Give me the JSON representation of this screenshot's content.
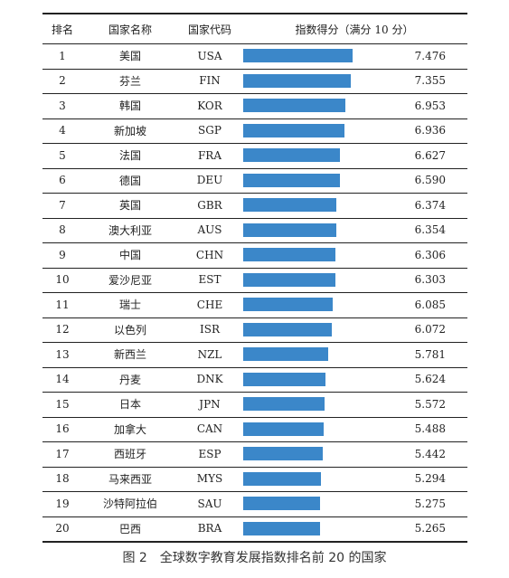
{
  "caption": "图 2　全球数字教育发展指数排名前 20 的国家",
  "headers": {
    "rank": "排名",
    "name": "国家名称",
    "code": "国家代码",
    "score": "指数得分（满分 10 分）"
  },
  "chart_data": {
    "type": "bar",
    "orientation": "horizontal",
    "title": "",
    "xlim": [
      0,
      10
    ],
    "bar_color": "#3b87c9",
    "rows": [
      {
        "rank": "1",
        "name": "美国",
        "code": "USA",
        "value": 7.476,
        "label": "7.476"
      },
      {
        "rank": "2",
        "name": "芬兰",
        "code": "FIN",
        "value": 7.355,
        "label": "7.355"
      },
      {
        "rank": "3",
        "name": "韩国",
        "code": "KOR",
        "value": 6.953,
        "label": "6.953"
      },
      {
        "rank": "4",
        "name": "新加坡",
        "code": "SGP",
        "value": 6.936,
        "label": "6.936"
      },
      {
        "rank": "5",
        "name": "法国",
        "code": "FRA",
        "value": 6.627,
        "label": "6.627"
      },
      {
        "rank": "6",
        "name": "德国",
        "code": "DEU",
        "value": 6.59,
        "label": "6.590"
      },
      {
        "rank": "7",
        "name": "英国",
        "code": "GBR",
        "value": 6.374,
        "label": "6.374"
      },
      {
        "rank": "8",
        "name": "澳大利亚",
        "code": "AUS",
        "value": 6.354,
        "label": "6.354"
      },
      {
        "rank": "9",
        "name": "中国",
        "code": "CHN",
        "value": 6.306,
        "label": "6.306"
      },
      {
        "rank": "10",
        "name": "爱沙尼亚",
        "code": "EST",
        "value": 6.303,
        "label": "6.303"
      },
      {
        "rank": "11",
        "name": "瑞士",
        "code": "CHE",
        "value": 6.085,
        "label": "6.085"
      },
      {
        "rank": "12",
        "name": "以色列",
        "code": "ISR",
        "value": 6.072,
        "label": "6.072"
      },
      {
        "rank": "13",
        "name": "新西兰",
        "code": "NZL",
        "value": 5.781,
        "label": "5.781"
      },
      {
        "rank": "14",
        "name": "丹麦",
        "code": "DNK",
        "value": 5.624,
        "label": "5.624"
      },
      {
        "rank": "15",
        "name": "日本",
        "code": "JPN",
        "value": 5.572,
        "label": "5.572"
      },
      {
        "rank": "16",
        "name": "加拿大",
        "code": "CAN",
        "value": 5.488,
        "label": "5.488"
      },
      {
        "rank": "17",
        "name": "西班牙",
        "code": "ESP",
        "value": 5.442,
        "label": "5.442"
      },
      {
        "rank": "18",
        "name": "马来西亚",
        "code": "MYS",
        "value": 5.294,
        "label": "5.294"
      },
      {
        "rank": "19",
        "name": "沙特阿拉伯",
        "code": "SAU",
        "value": 5.275,
        "label": "5.275"
      },
      {
        "rank": "20",
        "name": "巴西",
        "code": "BRA",
        "value": 5.265,
        "label": "5.265"
      }
    ]
  }
}
